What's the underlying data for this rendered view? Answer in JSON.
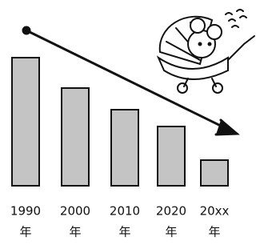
{
  "chart_data": {
    "type": "bar",
    "categories": [
      [
        "1990",
        "年"
      ],
      [
        "2000",
        "年"
      ],
      [
        "2010",
        "年"
      ],
      [
        "2020",
        "年"
      ],
      [
        "20xx",
        "年"
      ]
    ],
    "values": [
      160,
      122,
      95,
      74,
      32
    ],
    "color": "#c4c4c4"
  }
}
